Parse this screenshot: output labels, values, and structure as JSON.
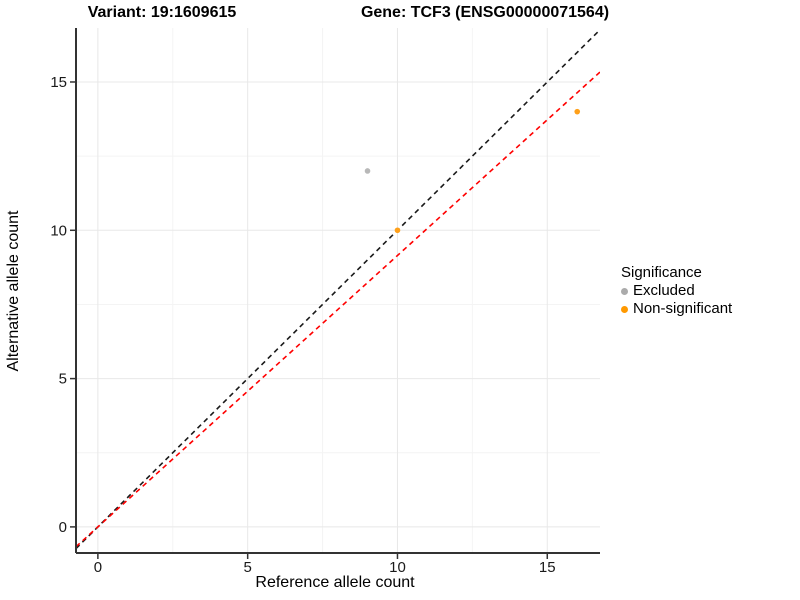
{
  "header": {
    "variant_title": "Variant: 19:1609615",
    "gene_title": "Gene: TCF3 (ENSG00000071564)"
  },
  "chart_data": {
    "type": "scatter",
    "title_left": "Variant: 19:1609615",
    "title_right": "Gene: TCF3 (ENSG00000071564)",
    "xlabel": "Reference allele count",
    "ylabel": "Alternative allele count",
    "xlim": [
      -0.73,
      16.76
    ],
    "ylim": [
      -0.88,
      16.82
    ],
    "xticks": [
      0,
      5,
      10,
      15
    ],
    "yticks": [
      0,
      5,
      10,
      15
    ],
    "minor_xticks": [
      2.5,
      7.5,
      12.5
    ],
    "minor_yticks": [
      2.5,
      7.5,
      12.5
    ],
    "grid": "major+minor on white background",
    "axis_line_color": "#333333",
    "major_grid_color": "#e8e8e8",
    "minor_grid_color": "#f4f4f4",
    "series": [
      {
        "name": "Excluded",
        "color": "#b8b8b8",
        "points": [
          {
            "x": 9,
            "y": 12
          }
        ]
      },
      {
        "name": "Non-significant",
        "color": "#ffa019",
        "points": [
          {
            "x": 10,
            "y": 10
          },
          {
            "x": 16,
            "y": 14
          }
        ]
      }
    ],
    "lines": [
      {
        "name": "identity-line",
        "slope": 1,
        "intercept": 0,
        "color": "#1a1a1a",
        "style": "dashed"
      },
      {
        "name": "expected-ratio-line",
        "slope": 0.915,
        "intercept": 0,
        "color": "#ff0000",
        "style": "dashed"
      }
    ],
    "legend": {
      "title": "Significance",
      "position": "right",
      "items": [
        {
          "label": "Excluded",
          "color": "#ababab"
        },
        {
          "label": "Non-significant",
          "color": "#ff9900"
        }
      ]
    }
  }
}
